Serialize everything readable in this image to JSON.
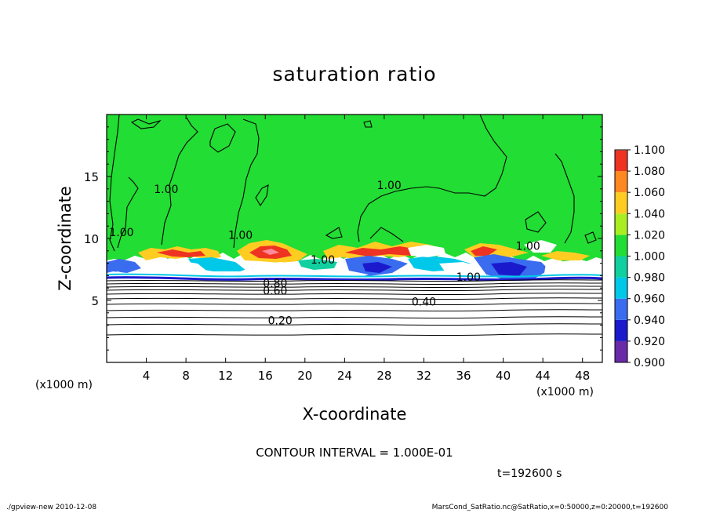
{
  "chart_data": {
    "type": "heatmap",
    "title": "saturation ratio",
    "xlabel": "X-coordinate",
    "ylabel": "Z-coordinate",
    "x_unit_left": "(x1000 m)",
    "x_unit_right": "(x1000 m)",
    "xlim": [
      0,
      50
    ],
    "ylim": [
      0,
      20
    ],
    "x_ticks": [
      4,
      8,
      12,
      16,
      20,
      24,
      28,
      32,
      36,
      40,
      44,
      48
    ],
    "x_tick_labels": [
      "4",
      "8",
      "12",
      "16",
      "20",
      "24",
      "28",
      "32",
      "36",
      "40",
      "44",
      "48"
    ],
    "y_ticks": [
      5,
      10,
      15
    ],
    "y_tick_labels": [
      "5",
      "10",
      "15"
    ],
    "colorbar": {
      "levels": [
        0.9,
        0.92,
        0.94,
        0.96,
        0.98,
        1.0,
        1.02,
        1.04,
        1.06,
        1.08,
        1.1
      ],
      "labels": [
        "0.900",
        "0.920",
        "0.940",
        "0.960",
        "0.980",
        "1.000",
        "1.020",
        "1.040",
        "1.060",
        "1.080",
        "1.100"
      ],
      "colors": [
        "#6a2aa8",
        "#1a1acc",
        "#3a6cf0",
        "#00c8e8",
        "#10d0a0",
        "#22dd33",
        "#aaee22",
        "#ffcc22",
        "#ff8822",
        "#ee3322",
        "#ff8899"
      ]
    },
    "contour_labels": [
      {
        "text": "1.00",
        "x": 6.0,
        "z": 14.0
      },
      {
        "text": "1.00",
        "x": 1.5,
        "z": 10.5
      },
      {
        "text": "1.00",
        "x": 13.5,
        "z": 10.3
      },
      {
        "text": "1.00",
        "x": 28.5,
        "z": 14.3
      },
      {
        "text": "1.00",
        "x": 42.5,
        "z": 9.4
      },
      {
        "text": "1.00",
        "x": 21.8,
        "z": 8.3
      },
      {
        "text": "1.00",
        "x": 36.5,
        "z": 6.9
      },
      {
        "text": "0.80",
        "x": 17.0,
        "z": 6.4
      },
      {
        "text": "0.60",
        "x": 17.0,
        "z": 5.8
      },
      {
        "text": "0.40",
        "x": 32.0,
        "z": 4.9
      },
      {
        "text": "0.20",
        "x": 17.5,
        "z": 3.4
      }
    ],
    "contour_interval_text": "CONTOUR INTERVAL = 1.000E-01",
    "time_label": "t=192600 s"
  },
  "footer": {
    "left": "./gpview-new  2010-12-08",
    "right": "MarsCond_SatRatio.nc@SatRatio,x=0:50000,z=0:20000,t=192600"
  },
  "colors": {
    "saturated_fill": "#22dd33",
    "subsaturated_fill": "#ffffff",
    "contour_line": "#000000"
  }
}
